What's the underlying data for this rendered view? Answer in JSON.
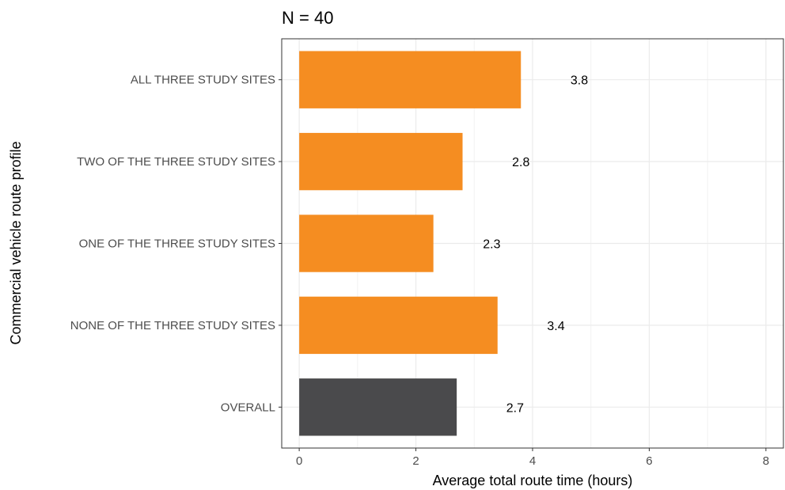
{
  "chart_data": {
    "type": "bar",
    "orientation": "horizontal",
    "title": "N = 40",
    "xlabel": "Average total route time (hours)",
    "ylabel": "Commercial vehicle route profile",
    "categories": [
      "ALL THREE STUDY SITES",
      "TWO OF THE THREE STUDY SITES",
      "ONE OF THE THREE STUDY SITES",
      "NONE OF THE THREE STUDY SITES",
      "OVERALL"
    ],
    "values": [
      3.8,
      2.8,
      2.3,
      3.4,
      2.7
    ],
    "data_labels": [
      "3.8",
      "2.8",
      "2.3",
      "3.4",
      "2.7"
    ],
    "bar_colors": [
      "#f58d21",
      "#f58d21",
      "#f58d21",
      "#f58d21",
      "#4a4a4c"
    ],
    "xlim": [
      -0.3,
      8.3
    ],
    "xticks": [
      0,
      2,
      4,
      6,
      8
    ],
    "xtick_labels": [
      "0",
      "2",
      "4",
      "6",
      "8"
    ],
    "grid": true,
    "legend": "none"
  }
}
